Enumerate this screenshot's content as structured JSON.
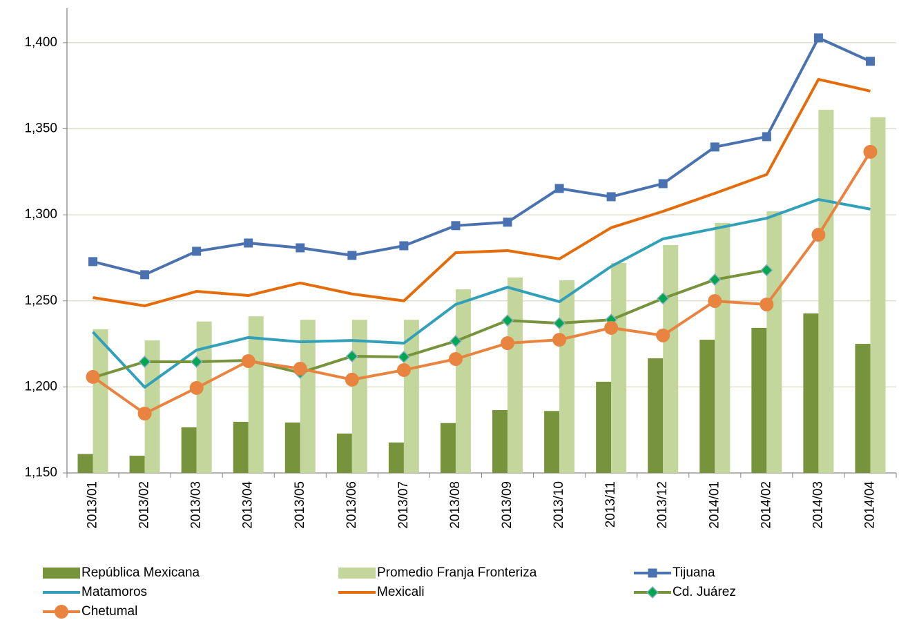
{
  "chart_data": {
    "type": "combo",
    "categories": [
      "2013/01",
      "2013/02",
      "2013/03",
      "2013/04",
      "2013/05",
      "2013/06",
      "2013/07",
      "2013/08",
      "2013/09",
      "2013/10",
      "2013/11",
      "2013/12",
      "2014/01",
      "2014/02",
      "2014/03",
      "2014/04"
    ],
    "ylim": [
      1150,
      1420
    ],
    "yticks": [
      {
        "value": 1150,
        "label": "1,150"
      },
      {
        "value": 1200,
        "label": "1,200"
      },
      {
        "value": 1250,
        "label": "1,250"
      },
      {
        "value": 1300,
        "label": "1,300"
      },
      {
        "value": 1350,
        "label": "1,350"
      },
      {
        "value": 1400,
        "label": "1,400"
      }
    ],
    "grid": true,
    "legend": "bottom",
    "series": [
      {
        "name": "República Mexicana",
        "kind": "bar",
        "color": "#77933c",
        "values": [
          1161,
          1160,
          1176.5,
          1179.7,
          1179.3,
          1172.9,
          1167.7,
          1179,
          1186.5,
          1186,
          1203,
          1216.6,
          1227.4,
          1234.3,
          1242.7,
          1225
        ]
      },
      {
        "name": "Promedio Franja Fronteriza",
        "kind": "bar",
        "color": "#c3d69b",
        "values": [
          1233.5,
          1227,
          1238,
          1241,
          1239,
          1239,
          1239,
          1256.7,
          1263.6,
          1262,
          1272,
          1282.4,
          1295.3,
          1302,
          1361,
          1356.7
        ]
      },
      {
        "name": "Tijuana",
        "kind": "line",
        "marker": "square",
        "color": "#4a72b0",
        "values": [
          1272.8,
          1265.2,
          1278.8,
          1283.6,
          1280.8,
          1276.4,
          1282,
          1293.7,
          1295.7,
          1315.3,
          1310.5,
          1318.1,
          1339.4,
          1345.4,
          1402.8,
          1389.2
        ]
      },
      {
        "name": "Matamoros",
        "kind": "line",
        "color": "#31a0b8",
        "values": [
          1231.9,
          1199.8,
          1221.4,
          1228.7,
          1226.2,
          1227,
          1225.4,
          1247.9,
          1257.9,
          1249.5,
          1270,
          1286,
          1292,
          1298,
          1308.9,
          1303.3
        ]
      },
      {
        "name": "Mexicali",
        "kind": "line",
        "color": "#e46c0a",
        "values": [
          1251.9,
          1247.1,
          1255.5,
          1253.1,
          1260.4,
          1254,
          1250,
          1278,
          1279.2,
          1274.4,
          1292.5,
          1302,
          1312.5,
          1323.4,
          1378.7,
          1371.9
        ]
      },
      {
        "name": "Cd. Juárez",
        "kind": "line",
        "marker": "diamond",
        "color": "#77933c",
        "marker_fill": "#00a651",
        "values": [
          1205.4,
          1214.6,
          1214.6,
          1215.4,
          1208.2,
          1217.8,
          1217.4,
          1226.6,
          1238.6,
          1237,
          1239,
          1251.4,
          1262.3,
          1267.8,
          null,
          null
        ]
      },
      {
        "name": "Chetumal",
        "kind": "line",
        "marker": "circle",
        "color": "#e8843f",
        "values": [
          1205.8,
          1184.5,
          1199.4,
          1215,
          1210.6,
          1204.2,
          1209.8,
          1216.2,
          1225.4,
          1227.4,
          1234.3,
          1229.9,
          1249.9,
          1247.9,
          1288.4,
          1336.6
        ]
      }
    ]
  }
}
